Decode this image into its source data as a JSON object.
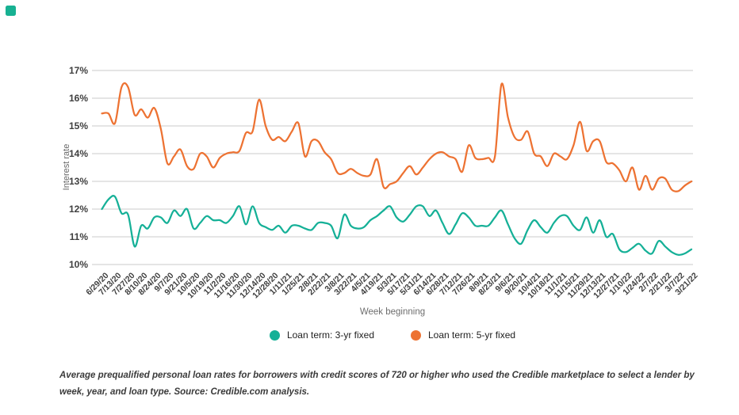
{
  "brand": {
    "logo_color": "#17b192"
  },
  "chart": {
    "grid_color": "#cbcbcb",
    "y_axis": {
      "title": "Interest rate",
      "ticks": [
        "17%",
        "16%",
        "15%",
        "14%",
        "13%",
        "12%",
        "11%",
        "10%"
      ]
    },
    "x_axis": {
      "title": "Week beginning",
      "labels": [
        "6/29/20",
        "7/13/20",
        "7/27/20",
        "8/10/20",
        "8/24/20",
        "9/7/20",
        "9/21/20",
        "10/5/20",
        "10/19/20",
        "11/2/20",
        "11/16/20",
        "11/30/20",
        "12/14/20",
        "12/28/20",
        "1/11/21",
        "1/25/21",
        "2/8/21",
        "2/22/21",
        "3/8/21",
        "3/22/21",
        "4/5/21",
        "4/19/21",
        "5/3/21",
        "5/17/21",
        "5/31/21",
        "6/14/21",
        "6/28/21",
        "7/12/21",
        "7/26/21",
        "8/9/21",
        "8/23/21",
        "9/6/21",
        "9/20/21",
        "10/4/21",
        "10/18/21",
        "11/1/21",
        "11/15/21",
        "11/29/21",
        "12/13/21",
        "12/27/21",
        "1/10/22",
        "1/24/22",
        "2/7/22",
        "2/21/22",
        "3/7/22",
        "3/21/22"
      ]
    }
  },
  "chart_data": {
    "type": "line",
    "title": "",
    "xlabel": "Week beginning",
    "ylabel": "Interest rate",
    "ylim": [
      10,
      17
    ],
    "grid": "horizontal",
    "legend_position": "bottom",
    "x_tick_labels": [
      "6/29/20",
      "7/13/20",
      "7/27/20",
      "8/10/20",
      "8/24/20",
      "9/7/20",
      "9/21/20",
      "10/5/20",
      "10/19/20",
      "11/2/20",
      "11/16/20",
      "11/30/20",
      "12/14/20",
      "12/28/20",
      "1/11/21",
      "1/25/21",
      "2/8/21",
      "2/22/21",
      "3/8/21",
      "3/22/21",
      "4/5/21",
      "4/19/21",
      "5/3/21",
      "5/17/21",
      "5/31/21",
      "6/14/21",
      "6/28/21",
      "7/12/21",
      "7/26/21",
      "8/9/21",
      "8/23/21",
      "9/6/21",
      "9/20/21",
      "10/4/21",
      "10/18/21",
      "11/1/21",
      "11/15/21",
      "11/29/21",
      "12/13/21",
      "12/27/21",
      "1/10/22",
      "1/24/22",
      "2/7/22",
      "2/21/22",
      "3/7/22",
      "3/21/22"
    ],
    "points_per_label": 2,
    "series": [
      {
        "name": "Loan term: 3-yr fixed",
        "color": "#15b097",
        "values": [
          12.0,
          12.35,
          12.45,
          11.85,
          11.8,
          10.65,
          11.4,
          11.3,
          11.7,
          11.7,
          11.5,
          11.95,
          11.75,
          12.0,
          11.3,
          11.5,
          11.75,
          11.6,
          11.6,
          11.5,
          11.75,
          12.1,
          11.45,
          12.1,
          11.5,
          11.35,
          11.25,
          11.4,
          11.15,
          11.4,
          11.4,
          11.3,
          11.25,
          11.5,
          11.5,
          11.4,
          10.95,
          11.8,
          11.4,
          11.3,
          11.35,
          11.6,
          11.75,
          11.95,
          12.1,
          11.7,
          11.55,
          11.8,
          12.1,
          12.1,
          11.75,
          11.95,
          11.5,
          11.1,
          11.45,
          11.85,
          11.7,
          11.4,
          11.4,
          11.4,
          11.7,
          11.95,
          11.45,
          10.95,
          10.75,
          11.25,
          11.6,
          11.35,
          11.15,
          11.5,
          11.75,
          11.75,
          11.4,
          11.25,
          11.7,
          11.15,
          11.6,
          11.0,
          11.1,
          10.55,
          10.45,
          10.6,
          10.75,
          10.5,
          10.4,
          10.85,
          10.65,
          10.45,
          10.35,
          10.4,
          10.55
        ]
      },
      {
        "name": "Loan term: 5-yr fixed",
        "color": "#ed7232",
        "values": [
          15.45,
          15.45,
          15.1,
          16.4,
          16.4,
          15.4,
          15.6,
          15.3,
          15.65,
          14.9,
          13.65,
          13.9,
          14.15,
          13.55,
          13.45,
          14.0,
          13.9,
          13.5,
          13.85,
          14.0,
          14.05,
          14.1,
          14.75,
          14.8,
          15.95,
          15.0,
          14.5,
          14.6,
          14.45,
          14.8,
          15.1,
          13.9,
          14.45,
          14.45,
          14.05,
          13.8,
          13.3,
          13.3,
          13.45,
          13.3,
          13.2,
          13.25,
          13.8,
          12.8,
          12.9,
          13.0,
          13.3,
          13.55,
          13.25,
          13.5,
          13.8,
          14.0,
          14.05,
          13.9,
          13.8,
          13.35,
          14.3,
          13.85,
          13.8,
          13.85,
          13.9,
          16.5,
          15.3,
          14.6,
          14.5,
          14.8,
          14.0,
          13.9,
          13.55,
          14.0,
          13.9,
          13.8,
          14.3,
          15.15,
          14.1,
          14.45,
          14.45,
          13.7,
          13.65,
          13.4,
          13.0,
          13.5,
          12.7,
          13.2,
          12.7,
          13.1,
          13.1,
          12.7,
          12.65,
          12.85,
          13.0
        ]
      }
    ]
  },
  "caption": {
    "text": "Average prequalified personal loan rates for borrowers with credit scores of 720 or higher who used the Credible marketplace to select a lender by week, year, and loan type. Source: Credible.com analysis."
  }
}
